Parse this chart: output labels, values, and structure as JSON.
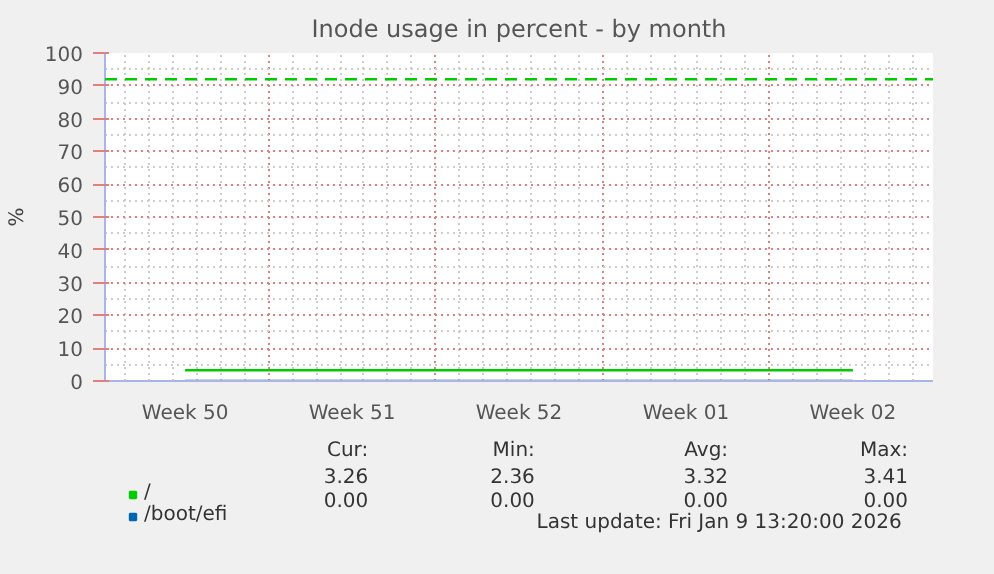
{
  "chart_data": {
    "type": "line",
    "title": "Inode usage in percent - by month",
    "ylabel": "%",
    "categories": [
      "Week 50",
      "Week 51",
      "Week 52",
      "Week 01",
      "Week 02"
    ],
    "series": [
      {
        "name": "/",
        "color": "#00cc00",
        "values": [
          3.3,
          3.3,
          3.3,
          3.3,
          3.3
        ]
      },
      {
        "name": "/boot/efi",
        "color": "#0066b3",
        "values": [
          null,
          null,
          null,
          null,
          null
        ]
      }
    ],
    "ylim": [
      0,
      100
    ],
    "yticks": [
      0,
      10,
      20,
      30,
      40,
      50,
      60,
      70,
      80,
      90,
      100
    ],
    "ref_lines": [
      {
        "axis": "y",
        "value": 92,
        "color": "#00cc00",
        "line_style": "dashed"
      }
    ],
    "grid": true,
    "legend": "bottom",
    "annotations": [
      "Cur:",
      "Min:",
      "Avg:",
      "Max:",
      "3.26",
      "2.36",
      "3.32",
      "3.41",
      "0.00",
      "0.00",
      "0.00",
      "0.00",
      "Last update: Fri Jan  9 13:20:00 2026"
    ]
  }
}
